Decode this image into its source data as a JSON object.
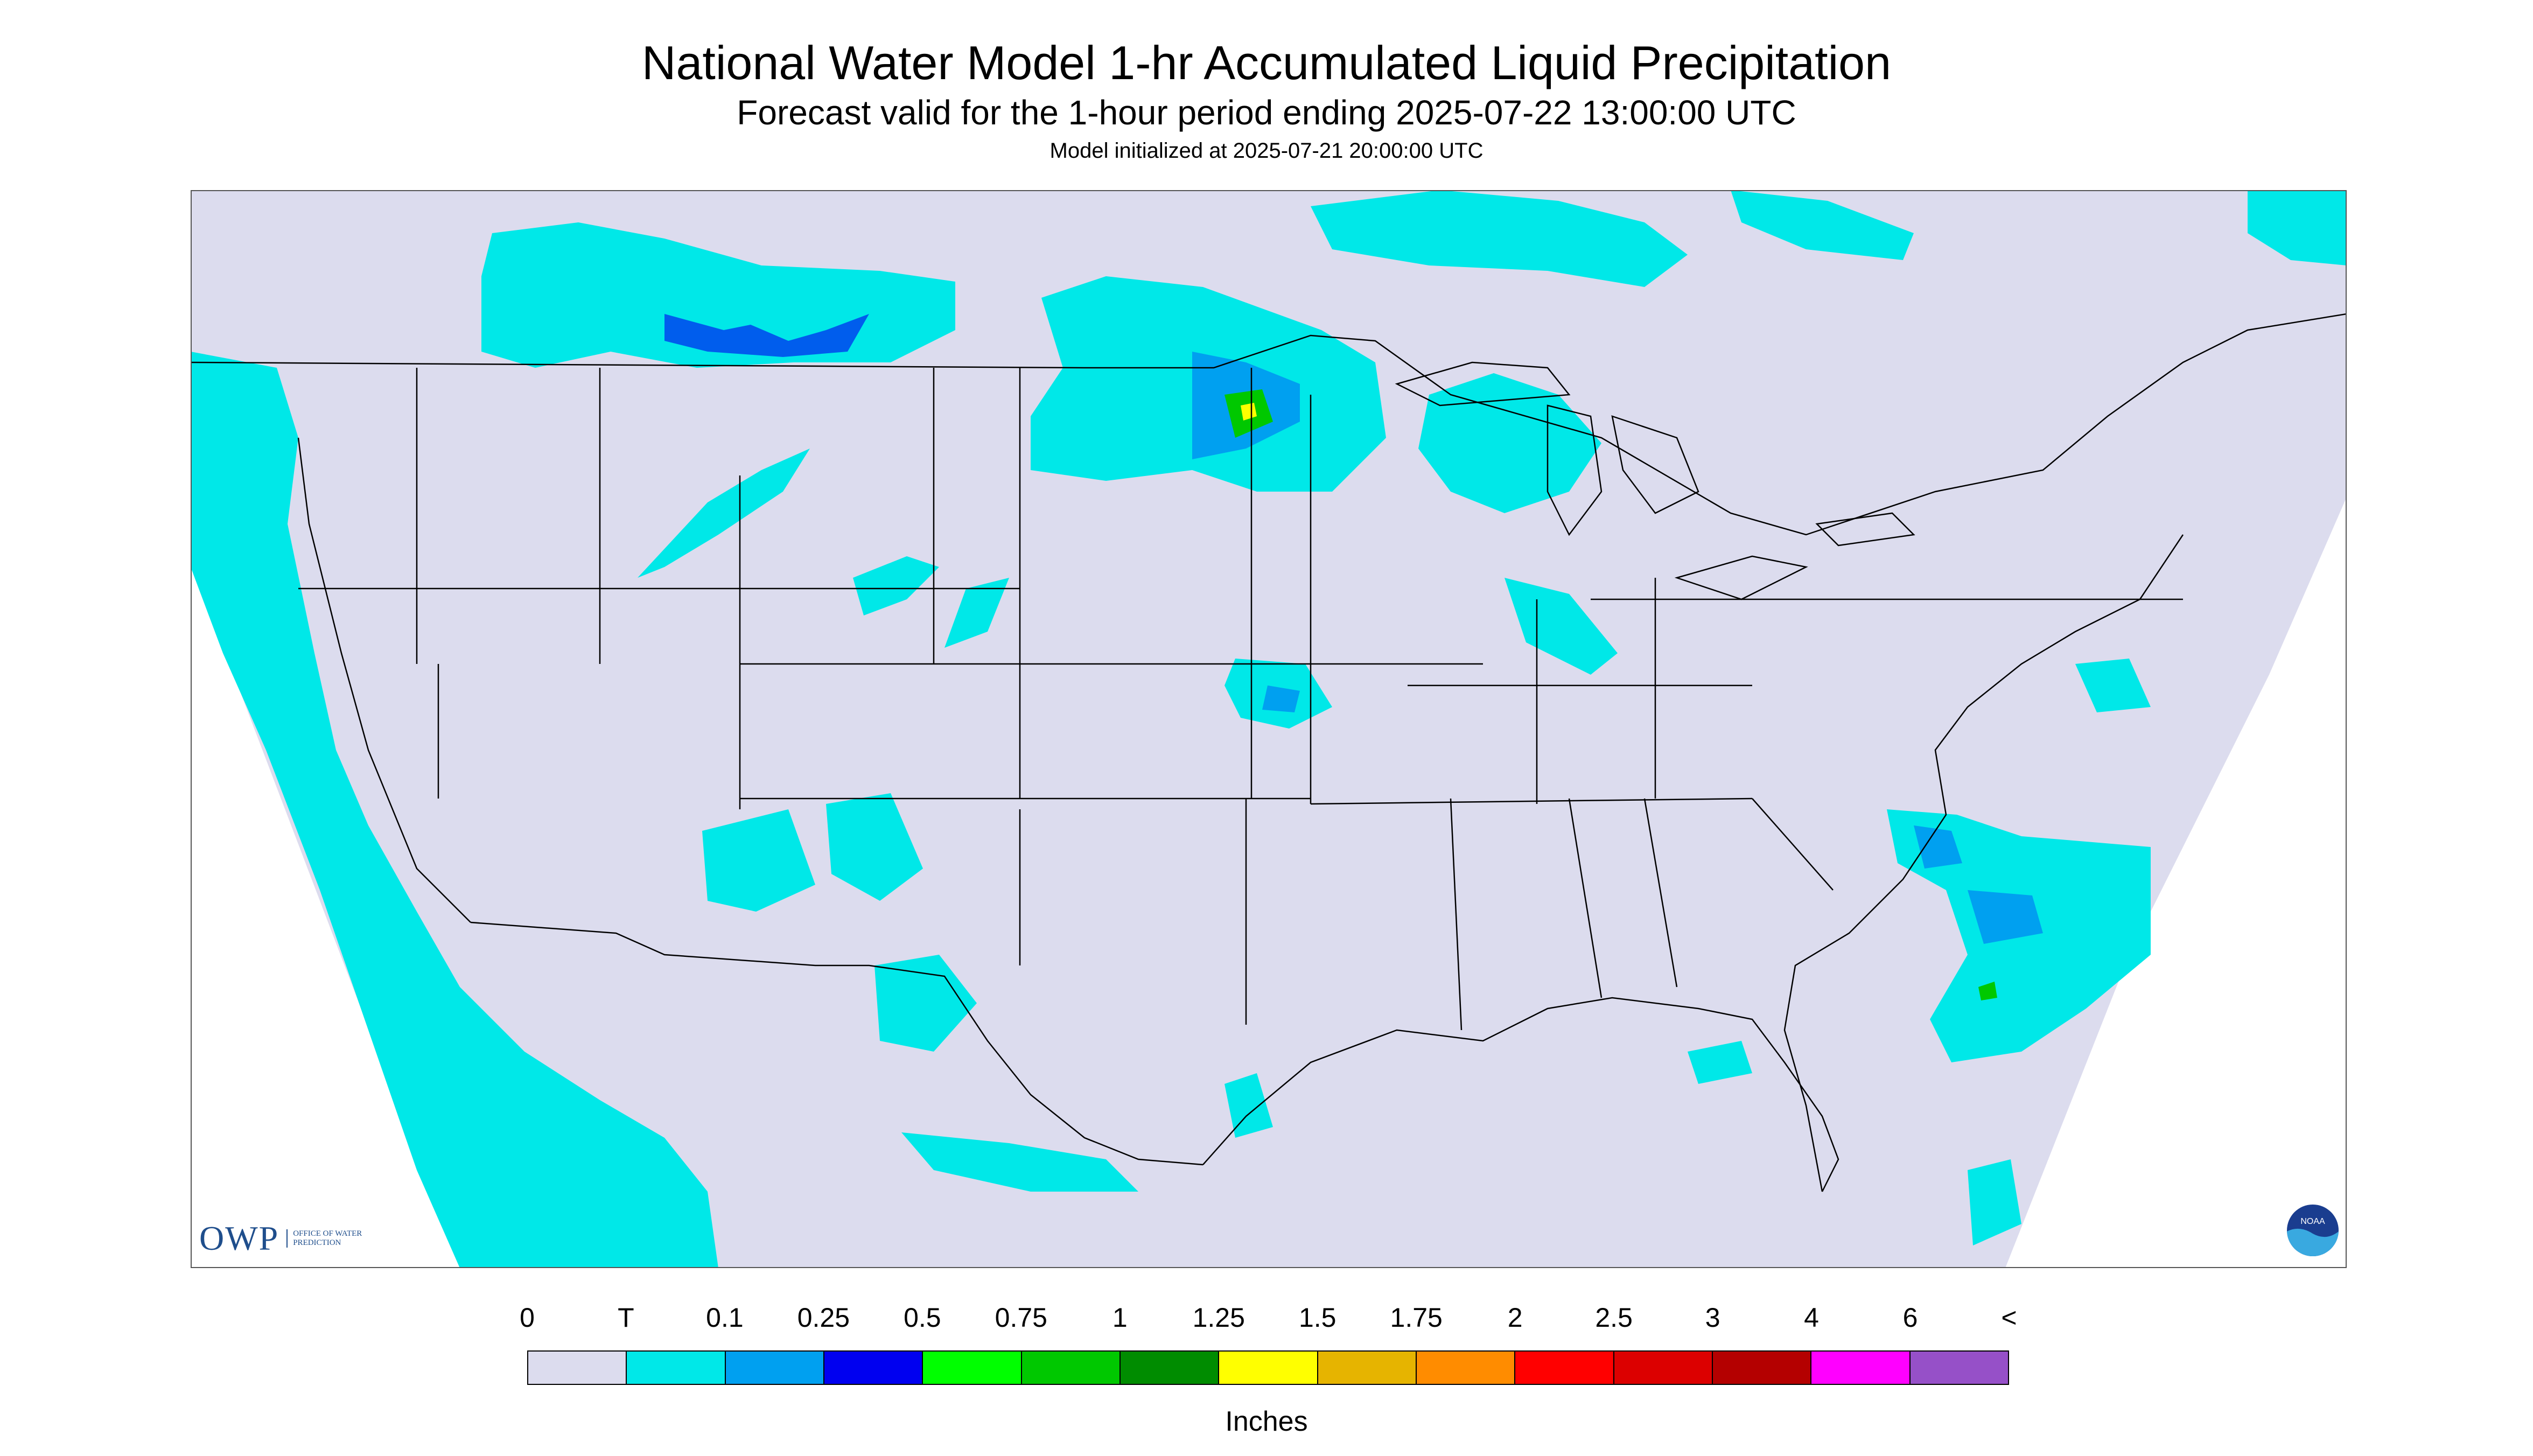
{
  "header": {
    "title": "National Water Model 1-hr Accumulated Liquid Precipitation",
    "subtitle": "Forecast valid for the 1-hour period ending 2025-07-22 13:00:00 UTC",
    "init_line": "Model initialized at 2025-07-21 20:00:00 UTC"
  },
  "colors": {
    "background": "#dcdcee",
    "trace": "#00e8e8",
    "outside_domain": "#ffffff",
    "borders": "#000000"
  },
  "legend": {
    "labels": [
      "0",
      "T",
      "0.1",
      "0.25",
      "0.5",
      "0.75",
      "1",
      "1.25",
      "1.5",
      "1.75",
      "2",
      "2.5",
      "3",
      "4",
      "6",
      "<"
    ],
    "colors": [
      "#dcdcee",
      "#00e8e8",
      "#00a0f0",
      "#0000f0",
      "#00ff00",
      "#00c800",
      "#008c00",
      "#ffff00",
      "#e6b400",
      "#ff8c00",
      "#ff0000",
      "#dc0000",
      "#b40000",
      "#ff00ff",
      "#9650c8"
    ],
    "units": "Inches"
  },
  "logos": {
    "owp_mark": "OWP",
    "owp_text": "OFFICE OF WATER PREDICTION",
    "noaa_text": "NOAA"
  }
}
